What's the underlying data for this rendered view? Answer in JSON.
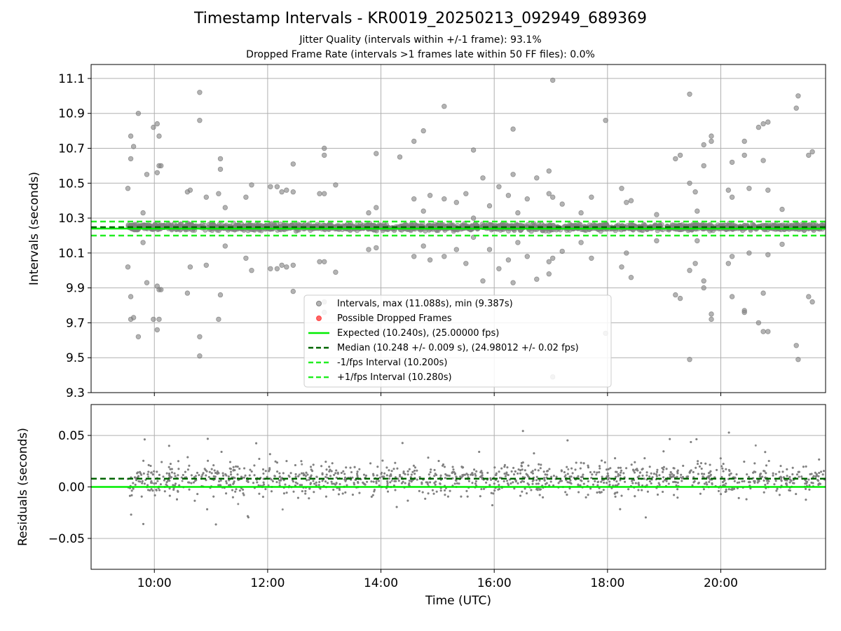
{
  "title": "Timestamp Intervals - KR0019_20250213_092949_689369",
  "subtitle_lines": [
    "Jitter Quality (intervals within +/-1 frame): 93.1%",
    "Dropped Frame Rate (intervals >1 frames late within 50 FF files): 0.0%"
  ],
  "colors": {
    "points": "#808080",
    "dropped": "#ff0000",
    "expected": "#00ee00",
    "median": "#006400",
    "fps_bounds": "#22ee22",
    "grid": "#b0b0b0"
  },
  "chart_data": [
    {
      "type": "scatter",
      "ylabel": "Intervals (seconds)",
      "ylim": [
        9.3,
        11.18
      ],
      "yticks": [
        "9.3",
        "9.5",
        "9.7",
        "9.9",
        "10.1",
        "10.3",
        "10.5",
        "10.7",
        "10.9",
        "11.1"
      ],
      "grid": true,
      "legend_placement": "lower-center",
      "legend": [
        "Intervals, max (11.088s), min (9.387s)",
        "Possible Dropped Frames",
        "Expected (10.240s), (25.00000 fps)",
        "Median (10.248 +/- 0.009 s), (24.98012 +/- 0.02 fps)",
        "-1/fps Interval (10.200s)",
        "+1/fps Interval (10.280s)"
      ],
      "reference_lines": {
        "expected": 10.24,
        "median": 10.248,
        "minus_1_fps": 10.2,
        "plus_1_fps": 10.28
      },
      "stats": {
        "max": 11.088,
        "min": 9.387
      },
      "outliers": [
        [
          "09:32",
          10.47
        ],
        [
          "09:32",
          10.02
        ],
        [
          "09:35",
          10.77
        ],
        [
          "09:35",
          10.64
        ],
        [
          "09:35",
          9.85
        ],
        [
          "09:35",
          9.72
        ],
        [
          "09:38",
          10.71
        ],
        [
          "09:38",
          9.73
        ],
        [
          "09:43",
          10.9
        ],
        [
          "09:43",
          9.62
        ],
        [
          "09:48",
          10.33
        ],
        [
          "09:48",
          10.16
        ],
        [
          "09:52",
          10.55
        ],
        [
          "09:52",
          9.93
        ],
        [
          "09:59",
          10.82
        ],
        [
          "09:59",
          9.72
        ],
        [
          "10:03",
          10.84
        ],
        [
          "10:03",
          10.56
        ],
        [
          "10:03",
          9.91
        ],
        [
          "10:03",
          9.66
        ],
        [
          "10:05",
          10.77
        ],
        [
          "10:05",
          10.6
        ],
        [
          "10:05",
          9.72
        ],
        [
          "10:05",
          9.89
        ],
        [
          "10:07",
          10.6
        ],
        [
          "10:07",
          9.89
        ],
        [
          "10:35",
          10.45
        ],
        [
          "10:35",
          9.87
        ],
        [
          "10:38",
          10.46
        ],
        [
          "10:38",
          10.02
        ],
        [
          "10:48",
          11.02
        ],
        [
          "10:48",
          10.86
        ],
        [
          "10:48",
          9.62
        ],
        [
          "10:48",
          9.51
        ],
        [
          "10:55",
          10.42
        ],
        [
          "10:55",
          10.03
        ],
        [
          "11:08",
          10.44
        ],
        [
          "11:08",
          9.72
        ],
        [
          "11:10",
          10.64
        ],
        [
          "11:10",
          10.58
        ],
        [
          "11:10",
          9.86
        ],
        [
          "11:15",
          10.36
        ],
        [
          "11:15",
          10.14
        ],
        [
          "11:37",
          10.42
        ],
        [
          "11:37",
          10.07
        ],
        [
          "11:43",
          10.49
        ],
        [
          "11:43",
          10.0
        ],
        [
          "12:03",
          10.48
        ],
        [
          "12:03",
          10.01
        ],
        [
          "12:10",
          10.48
        ],
        [
          "12:10",
          10.01
        ],
        [
          "12:15",
          10.45
        ],
        [
          "12:15",
          10.03
        ],
        [
          "12:20",
          10.46
        ],
        [
          "12:20",
          10.02
        ],
        [
          "12:27",
          10.61
        ],
        [
          "12:27",
          10.45
        ],
        [
          "12:27",
          10.03
        ],
        [
          "12:27",
          9.88
        ],
        [
          "12:55",
          10.44
        ],
        [
          "12:55",
          10.05
        ],
        [
          "13:00",
          10.7
        ],
        [
          "13:00",
          10.66
        ],
        [
          "13:00",
          10.44
        ],
        [
          "13:00",
          10.05
        ],
        [
          "13:00",
          9.82
        ],
        [
          "13:00",
          9.76
        ],
        [
          "13:12",
          10.49
        ],
        [
          "13:12",
          9.99
        ],
        [
          "13:47",
          10.33
        ],
        [
          "13:47",
          10.12
        ],
        [
          "13:55",
          10.67
        ],
        [
          "13:55",
          10.36
        ],
        [
          "13:55",
          10.13
        ],
        [
          "14:20",
          10.65
        ],
        [
          "14:35",
          10.74
        ],
        [
          "14:35",
          10.41
        ],
        [
          "14:35",
          10.08
        ],
        [
          "14:45",
          10.8
        ],
        [
          "14:45",
          10.34
        ],
        [
          "14:45",
          10.14
        ],
        [
          "14:52",
          10.43
        ],
        [
          "14:52",
          10.06
        ],
        [
          "15:07",
          10.94
        ],
        [
          "15:07",
          10.41
        ],
        [
          "15:07",
          10.08
        ],
        [
          "15:20",
          10.39
        ],
        [
          "15:20",
          10.12
        ],
        [
          "15:30",
          10.44
        ],
        [
          "15:30",
          10.04
        ],
        [
          "15:38",
          10.69
        ],
        [
          "15:38",
          10.3
        ],
        [
          "15:38",
          10.19
        ],
        [
          "15:48",
          10.53
        ],
        [
          "15:48",
          9.94
        ],
        [
          "15:55",
          10.37
        ],
        [
          "15:55",
          10.12
        ],
        [
          "16:05",
          10.48
        ],
        [
          "16:05",
          10.01
        ],
        [
          "16:15",
          10.43
        ],
        [
          "16:15",
          10.06
        ],
        [
          "16:20",
          10.81
        ],
        [
          "16:20",
          10.55
        ],
        [
          "16:20",
          9.93
        ],
        [
          "16:25",
          10.33
        ],
        [
          "16:25",
          10.16
        ],
        [
          "16:35",
          10.41
        ],
        [
          "16:35",
          10.08
        ],
        [
          "16:45",
          10.53
        ],
        [
          "16:45",
          9.95
        ],
        [
          "16:58",
          10.57
        ],
        [
          "16:58",
          10.44
        ],
        [
          "16:58",
          10.05
        ],
        [
          "16:58",
          9.98
        ],
        [
          "17:02",
          11.09
        ],
        [
          "17:02",
          10.42
        ],
        [
          "17:02",
          10.07
        ],
        [
          "17:02",
          9.39
        ],
        [
          "17:12",
          10.38
        ],
        [
          "17:12",
          10.11
        ],
        [
          "17:32",
          10.33
        ],
        [
          "17:32",
          10.16
        ],
        [
          "17:43",
          10.42
        ],
        [
          "17:43",
          10.07
        ],
        [
          "17:58",
          10.86
        ],
        [
          "17:58",
          9.64
        ],
        [
          "18:15",
          10.47
        ],
        [
          "18:15",
          10.02
        ],
        [
          "18:20",
          10.39
        ],
        [
          "18:20",
          10.1
        ],
        [
          "18:25",
          10.4
        ],
        [
          "18:25",
          9.96
        ],
        [
          "18:52",
          10.32
        ],
        [
          "18:52",
          10.17
        ],
        [
          "19:12",
          10.64
        ],
        [
          "19:12",
          9.86
        ],
        [
          "19:17",
          10.66
        ],
        [
          "19:17",
          9.84
        ],
        [
          "19:27",
          11.01
        ],
        [
          "19:27",
          10.5
        ],
        [
          "19:27",
          10.0
        ],
        [
          "19:27",
          9.49
        ],
        [
          "19:33",
          10.45
        ],
        [
          "19:33",
          10.04
        ],
        [
          "19:35",
          10.34
        ],
        [
          "19:35",
          10.17
        ],
        [
          "19:42",
          10.72
        ],
        [
          "19:42",
          10.6
        ],
        [
          "19:42",
          9.94
        ],
        [
          "19:42",
          9.9
        ],
        [
          "19:50",
          10.77
        ],
        [
          "19:50",
          10.74
        ],
        [
          "19:50",
          9.75
        ],
        [
          "19:50",
          9.72
        ],
        [
          "20:08",
          10.46
        ],
        [
          "20:08",
          10.04
        ],
        [
          "20:12",
          10.62
        ],
        [
          "20:12",
          10.42
        ],
        [
          "20:12",
          10.08
        ],
        [
          "20:12",
          9.85
        ],
        [
          "20:25",
          10.74
        ],
        [
          "20:25",
          10.66
        ],
        [
          "20:25",
          9.76
        ],
        [
          "20:25",
          9.77
        ],
        [
          "20:30",
          10.47
        ],
        [
          "20:30",
          10.1
        ],
        [
          "20:40",
          10.82
        ],
        [
          "20:40",
          9.7
        ],
        [
          "20:45",
          10.84
        ],
        [
          "20:45",
          10.63
        ],
        [
          "20:45",
          9.87
        ],
        [
          "20:45",
          9.65
        ],
        [
          "20:50",
          10.85
        ],
        [
          "20:50",
          10.46
        ],
        [
          "20:50",
          10.09
        ],
        [
          "20:50",
          9.65
        ],
        [
          "21:05",
          10.35
        ],
        [
          "21:05",
          10.15
        ],
        [
          "21:20",
          10.93
        ],
        [
          "21:20",
          9.57
        ],
        [
          "21:22",
          11.0
        ],
        [
          "21:22",
          9.49
        ],
        [
          "21:33",
          10.66
        ],
        [
          "21:33",
          9.85
        ],
        [
          "21:37",
          10.68
        ],
        [
          "21:37",
          9.82
        ]
      ]
    },
    {
      "type": "scatter",
      "ylabel": "Residuals (seconds)",
      "xlabel": "Time (UTC)",
      "ylim": [
        -0.08,
        0.08
      ],
      "yticks": [
        "−0.05",
        "0.00",
        "0.05"
      ],
      "grid": true,
      "reference_lines": {
        "expected": 0.0,
        "median": 0.008
      }
    }
  ],
  "x_axis": {
    "range": [
      "08:53",
      "21:51"
    ],
    "tick_labels": [
      "10:00",
      "12:00",
      "14:00",
      "16:00",
      "18:00",
      "20:00"
    ],
    "data_range": [
      "09:32",
      "21:50"
    ]
  }
}
